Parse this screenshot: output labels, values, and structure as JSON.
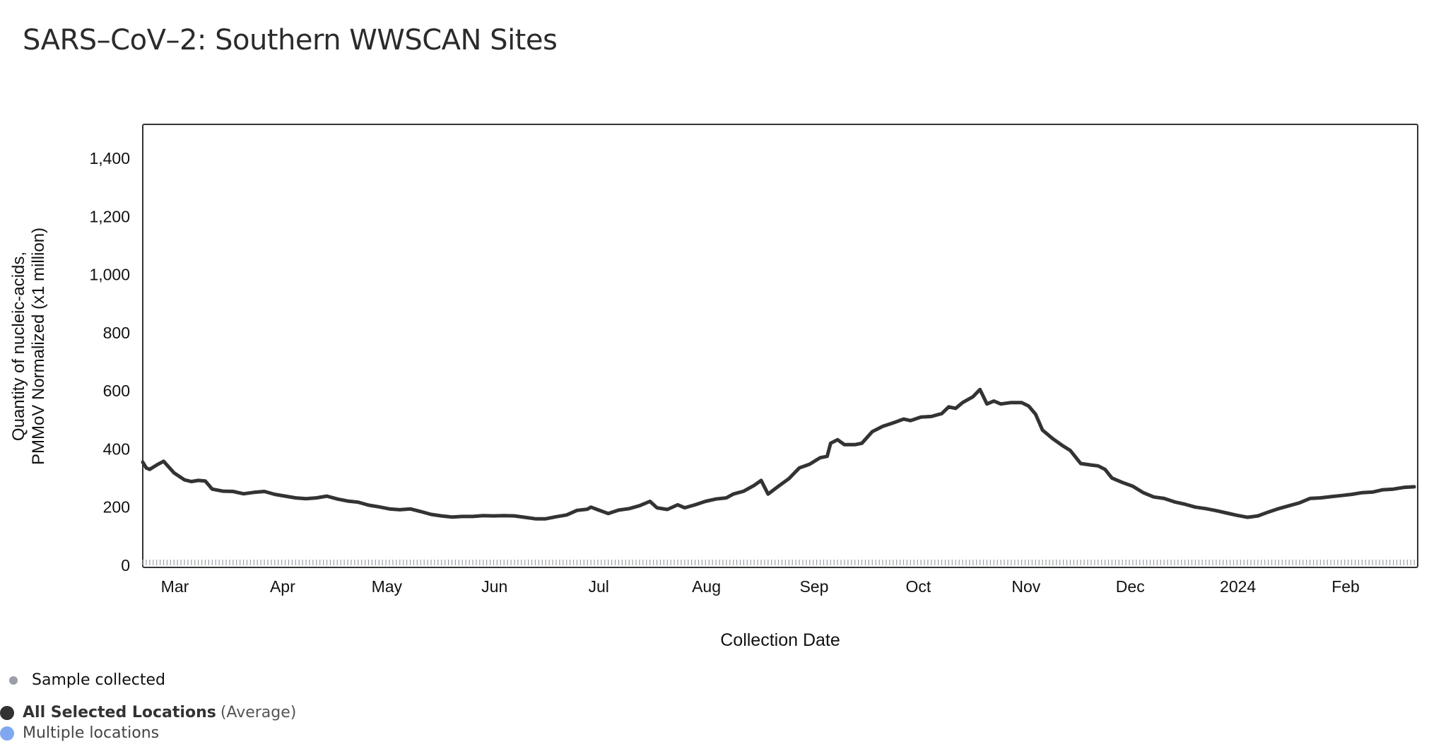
{
  "title": "SARS–CoV–2: Southern WWSCAN Sites",
  "colors": {
    "line": "#333333",
    "sample_dot": "#9aa0a6",
    "avg_dot": "#333333",
    "multi_dot": "#7fa8f0",
    "frame": "#333333"
  },
  "legend": {
    "sample_label": "Sample collected",
    "avg_label": "All Selected Locations",
    "avg_suffix": "(Average)",
    "multi_label": "Multiple locations"
  },
  "chart_data": {
    "type": "line",
    "title": "SARS–CoV–2: Southern WWSCAN Sites",
    "xlabel": "Collection Date",
    "ylabel": [
      "Quantity of nucleic-acids,",
      "PMMoV Normalized (x1 million)"
    ],
    "ylim": [
      0,
      1500
    ],
    "xlim": [
      "2023-02-23",
      "2024-02-25"
    ],
    "yticks": [
      0,
      200,
      400,
      600,
      800,
      1000,
      1200,
      1400
    ],
    "ytick_labels": [
      "0",
      "200",
      "400",
      "600",
      "800",
      "1,000",
      "1,200",
      "1,400"
    ],
    "xticks": [
      {
        "date": "2023-03-01",
        "label": "Mar"
      },
      {
        "date": "2023-04-01",
        "label": "Apr"
      },
      {
        "date": "2023-05-01",
        "label": "May"
      },
      {
        "date": "2023-06-01",
        "label": "Jun"
      },
      {
        "date": "2023-07-01",
        "label": "Jul"
      },
      {
        "date": "2023-08-01",
        "label": "Aug"
      },
      {
        "date": "2023-09-01",
        "label": "Sep"
      },
      {
        "date": "2023-10-01",
        "label": "Oct"
      },
      {
        "date": "2023-11-01",
        "label": "Nov"
      },
      {
        "date": "2023-12-01",
        "label": "Dec"
      },
      {
        "date": "2024-01-01",
        "label": "2024"
      },
      {
        "date": "2024-02-01",
        "label": "Feb"
      }
    ],
    "grid": false,
    "series": [
      {
        "name": "All Selected Locations",
        "points": [
          [
            "2023-02-23",
            355
          ],
          [
            "2023-02-24",
            335
          ],
          [
            "2023-02-25",
            330
          ],
          [
            "2023-02-27",
            345
          ],
          [
            "2023-03-01",
            358
          ],
          [
            "2023-03-04",
            318
          ],
          [
            "2023-03-07",
            294
          ],
          [
            "2023-03-09",
            288
          ],
          [
            "2023-03-11",
            292
          ],
          [
            "2023-03-13",
            290
          ],
          [
            "2023-03-15",
            262
          ],
          [
            "2023-03-18",
            255
          ],
          [
            "2023-03-21",
            254
          ],
          [
            "2023-03-24",
            246
          ],
          [
            "2023-03-27",
            251
          ],
          [
            "2023-03-30",
            254
          ],
          [
            "2023-04-02",
            244
          ],
          [
            "2023-04-05",
            238
          ],
          [
            "2023-04-08",
            232
          ],
          [
            "2023-04-11",
            229
          ],
          [
            "2023-04-14",
            232
          ],
          [
            "2023-04-17",
            238
          ],
          [
            "2023-04-20",
            228
          ],
          [
            "2023-04-23",
            221
          ],
          [
            "2023-04-26",
            217
          ],
          [
            "2023-04-29",
            207
          ],
          [
            "2023-05-02",
            201
          ],
          [
            "2023-05-05",
            194
          ],
          [
            "2023-05-08",
            191
          ],
          [
            "2023-05-11",
            194
          ],
          [
            "2023-05-14",
            185
          ],
          [
            "2023-05-17",
            175
          ],
          [
            "2023-05-20",
            170
          ],
          [
            "2023-05-23",
            166
          ],
          [
            "2023-05-26",
            168
          ],
          [
            "2023-05-29",
            168
          ],
          [
            "2023-06-01",
            171
          ],
          [
            "2023-06-04",
            170
          ],
          [
            "2023-06-07",
            171
          ],
          [
            "2023-06-10",
            170
          ],
          [
            "2023-06-13",
            165
          ],
          [
            "2023-06-16",
            160
          ],
          [
            "2023-06-19",
            160
          ],
          [
            "2023-06-22",
            167
          ],
          [
            "2023-06-25",
            173
          ],
          [
            "2023-06-28",
            189
          ],
          [
            "2023-07-01",
            193
          ],
          [
            "2023-07-02",
            200
          ],
          [
            "2023-07-04",
            191
          ],
          [
            "2023-07-07",
            178
          ],
          [
            "2023-07-10",
            190
          ],
          [
            "2023-07-13",
            195
          ],
          [
            "2023-07-16",
            205
          ],
          [
            "2023-07-19",
            220
          ],
          [
            "2023-07-21",
            198
          ],
          [
            "2023-07-24",
            192
          ],
          [
            "2023-07-27",
            208
          ],
          [
            "2023-07-29",
            198
          ],
          [
            "2023-08-01",
            208
          ],
          [
            "2023-08-04",
            220
          ],
          [
            "2023-08-07",
            228
          ],
          [
            "2023-08-10",
            232
          ],
          [
            "2023-08-12",
            245
          ],
          [
            "2023-08-15",
            255
          ],
          [
            "2023-08-18",
            275
          ],
          [
            "2023-08-20",
            292
          ],
          [
            "2023-08-22",
            245
          ],
          [
            "2023-08-25",
            272
          ],
          [
            "2023-08-28",
            298
          ],
          [
            "2023-08-31",
            335
          ],
          [
            "2023-09-03",
            348
          ],
          [
            "2023-09-06",
            370
          ],
          [
            "2023-09-08",
            375
          ],
          [
            "2023-09-09",
            420
          ],
          [
            "2023-09-11",
            432
          ],
          [
            "2023-09-13",
            415
          ],
          [
            "2023-09-16",
            415
          ],
          [
            "2023-09-18",
            420
          ],
          [
            "2023-09-21",
            460
          ],
          [
            "2023-09-24",
            478
          ],
          [
            "2023-09-27",
            490
          ],
          [
            "2023-09-30",
            503
          ],
          [
            "2023-10-02",
            498
          ],
          [
            "2023-10-05",
            510
          ],
          [
            "2023-10-08",
            512
          ],
          [
            "2023-10-11",
            522
          ],
          [
            "2023-10-13",
            545
          ],
          [
            "2023-10-15",
            540
          ],
          [
            "2023-10-17",
            560
          ],
          [
            "2023-10-20",
            580
          ],
          [
            "2023-10-22",
            605
          ],
          [
            "2023-10-24",
            555
          ],
          [
            "2023-10-26",
            565
          ],
          [
            "2023-10-28",
            555
          ],
          [
            "2023-10-31",
            560
          ],
          [
            "2023-11-03",
            560
          ],
          [
            "2023-11-05",
            548
          ],
          [
            "2023-11-07",
            520
          ],
          [
            "2023-11-09",
            465
          ],
          [
            "2023-11-12",
            435
          ],
          [
            "2023-11-15",
            410
          ],
          [
            "2023-11-17",
            395
          ],
          [
            "2023-11-20",
            350
          ],
          [
            "2023-11-23",
            345
          ],
          [
            "2023-11-25",
            342
          ],
          [
            "2023-11-27",
            330
          ],
          [
            "2023-11-29",
            300
          ],
          [
            "2023-12-02",
            285
          ],
          [
            "2023-12-05",
            272
          ],
          [
            "2023-12-08",
            250
          ],
          [
            "2023-12-11",
            235
          ],
          [
            "2023-12-14",
            230
          ],
          [
            "2023-12-17",
            218
          ],
          [
            "2023-12-20",
            210
          ],
          [
            "2023-12-23",
            200
          ],
          [
            "2023-12-26",
            195
          ],
          [
            "2023-12-29",
            188
          ],
          [
            "2024-01-01",
            180
          ],
          [
            "2024-01-04",
            172
          ],
          [
            "2024-01-07",
            165
          ],
          [
            "2024-01-10",
            170
          ],
          [
            "2024-01-13",
            183
          ],
          [
            "2024-01-16",
            195
          ],
          [
            "2024-01-19",
            205
          ],
          [
            "2024-01-22",
            215
          ],
          [
            "2024-01-25",
            230
          ],
          [
            "2024-01-28",
            232
          ],
          [
            "2024-01-31",
            236
          ],
          [
            "2024-02-03",
            240
          ],
          [
            "2024-02-06",
            244
          ],
          [
            "2024-02-09",
            250
          ],
          [
            "2024-02-12",
            252
          ],
          [
            "2024-02-15",
            260
          ],
          [
            "2024-02-18",
            262
          ],
          [
            "2024-02-21",
            268
          ],
          [
            "2024-02-24",
            270
          ]
        ]
      }
    ]
  }
}
